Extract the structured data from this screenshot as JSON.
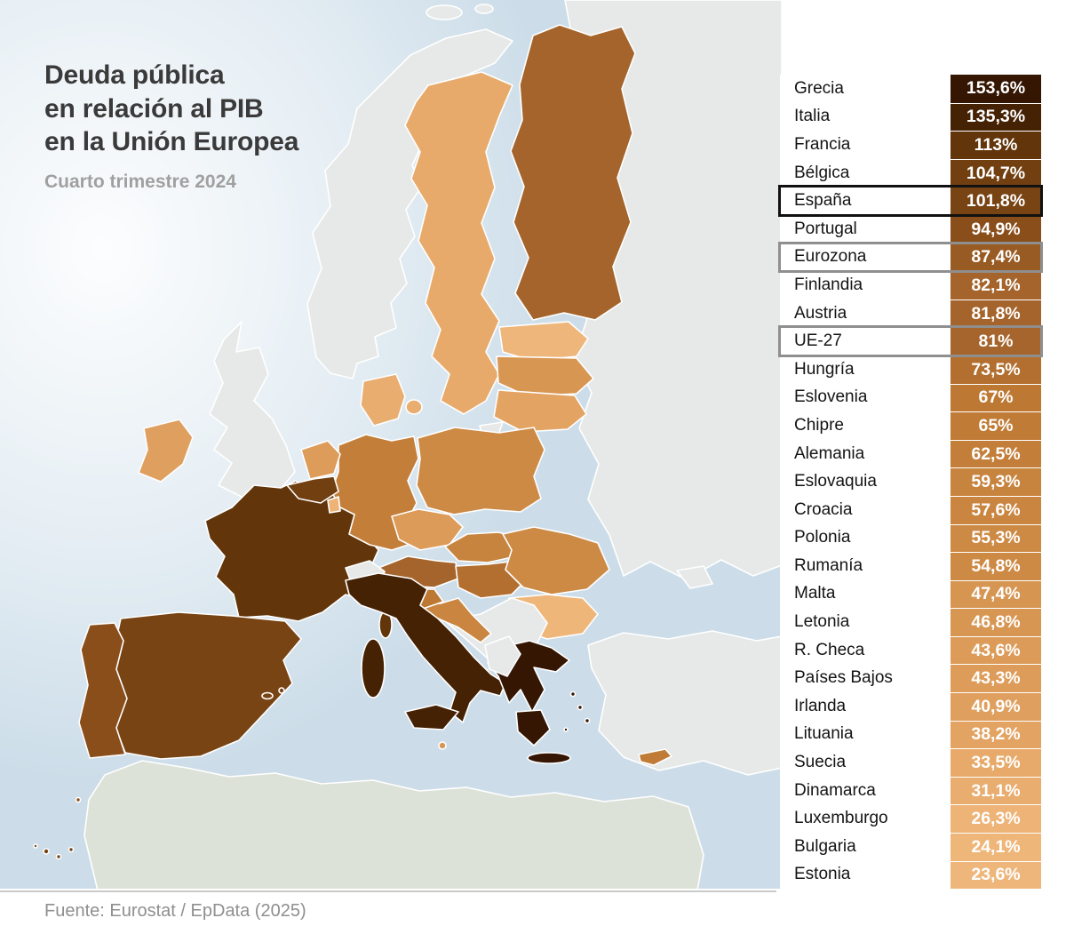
{
  "header": {
    "title_line1": "Deuda pública",
    "title_line2": "en relación al PIB",
    "title_line3": "en la Unión Europea",
    "subtitle": "Cuarto trimestre 2024"
  },
  "footer": {
    "source": "Fuente: Eurostat / EpData (2025)"
  },
  "chart_data": {
    "type": "choropleth",
    "title": "Deuda pública en relación al PIB en la Unión Europea",
    "subtitle": "Cuarto trimestre 2024",
    "unit": "% del PIB",
    "legend_position": "right-table",
    "rows": [
      {
        "label": "Grecia",
        "value": 153.6,
        "display": "153,6%",
        "highlight": "none"
      },
      {
        "label": "Italia",
        "value": 135.3,
        "display": "135,3%",
        "highlight": "none"
      },
      {
        "label": "Francia",
        "value": 113.0,
        "display": "113%",
        "highlight": "none"
      },
      {
        "label": "Bélgica",
        "value": 104.7,
        "display": "104,7%",
        "highlight": "none"
      },
      {
        "label": "España",
        "value": 101.8,
        "display": "101,8%",
        "highlight": "black"
      },
      {
        "label": "Portugal",
        "value": 94.9,
        "display": "94,9%",
        "highlight": "none"
      },
      {
        "label": "Eurozona",
        "value": 87.4,
        "display": "87,4%",
        "highlight": "gray"
      },
      {
        "label": "Finlandia",
        "value": 82.1,
        "display": "82,1%",
        "highlight": "none"
      },
      {
        "label": "Austria",
        "value": 81.8,
        "display": "81,8%",
        "highlight": "none"
      },
      {
        "label": "UE-27",
        "value": 81.0,
        "display": "81%",
        "highlight": "gray"
      },
      {
        "label": "Hungría",
        "value": 73.5,
        "display": "73,5%",
        "highlight": "none"
      },
      {
        "label": "Eslovenia",
        "value": 67.0,
        "display": "67%",
        "highlight": "none"
      },
      {
        "label": "Chipre",
        "value": 65.0,
        "display": "65%",
        "highlight": "none"
      },
      {
        "label": "Alemania",
        "value": 62.5,
        "display": "62,5%",
        "highlight": "none"
      },
      {
        "label": "Eslovaquia",
        "value": 59.3,
        "display": "59,3%",
        "highlight": "none"
      },
      {
        "label": "Croacia",
        "value": 57.6,
        "display": "57,6%",
        "highlight": "none"
      },
      {
        "label": "Polonia",
        "value": 55.3,
        "display": "55,3%",
        "highlight": "none"
      },
      {
        "label": "Rumanía",
        "value": 54.8,
        "display": "54,8%",
        "highlight": "none"
      },
      {
        "label": "Malta",
        "value": 47.4,
        "display": "47,4%",
        "highlight": "none"
      },
      {
        "label": "Letonia",
        "value": 46.8,
        "display": "46,8%",
        "highlight": "none"
      },
      {
        "label": "R. Checa",
        "value": 43.6,
        "display": "43,6%",
        "highlight": "none"
      },
      {
        "label": "Países Bajos",
        "value": 43.3,
        "display": "43,3%",
        "highlight": "none"
      },
      {
        "label": "Irlanda",
        "value": 40.9,
        "display": "40,9%",
        "highlight": "none"
      },
      {
        "label": "Lituania",
        "value": 38.2,
        "display": "38,2%",
        "highlight": "none"
      },
      {
        "label": "Suecia",
        "value": 33.5,
        "display": "33,5%",
        "highlight": "none"
      },
      {
        "label": "Dinamarca",
        "value": 31.1,
        "display": "31,1%",
        "highlight": "none"
      },
      {
        "label": "Luxemburgo",
        "value": 26.3,
        "display": "26,3%",
        "highlight": "none"
      },
      {
        "label": "Bulgaria",
        "value": 24.1,
        "display": "24,1%",
        "highlight": "none"
      },
      {
        "label": "Estonia",
        "value": 23.6,
        "display": "23,6%",
        "highlight": "none"
      }
    ],
    "colors": {
      "sea": "#ccdde9",
      "non_eu_land": "#e6e9e8",
      "africa_land": "#dde2d8",
      "border": "#ffffff",
      "highlight_black": "#111111",
      "highlight_gray": "#8f8f8f",
      "scale": [
        [
          23,
          "#f0b77c"
        ],
        [
          33,
          "#e7ab6c"
        ],
        [
          43,
          "#dd9c5a"
        ],
        [
          55,
          "#cd8a45"
        ],
        [
          67,
          "#bd7833"
        ],
        [
          82,
          "#a4642b"
        ],
        [
          95,
          "#8a4e1b"
        ],
        [
          105,
          "#703f10"
        ],
        [
          115,
          "#5e3309"
        ],
        [
          136,
          "#452105"
        ],
        [
          155,
          "#331503"
        ]
      ]
    }
  }
}
